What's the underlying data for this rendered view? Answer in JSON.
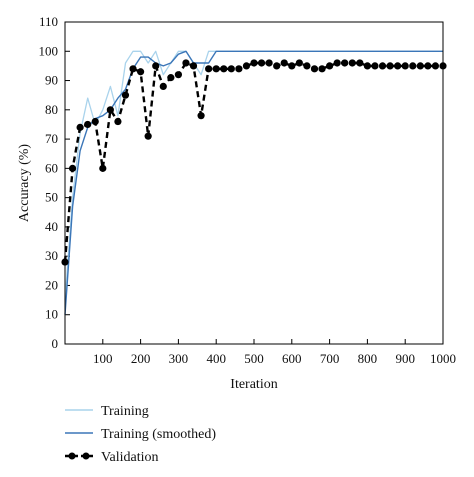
{
  "chart_data": {
    "type": "line",
    "xlabel": "Iteration",
    "ylabel": "Accuracy (%)",
    "xlim": [
      0,
      1000
    ],
    "ylim": [
      0,
      110
    ],
    "xticks": [
      100,
      200,
      300,
      400,
      500,
      600,
      700,
      800,
      900,
      1000
    ],
    "yticks": [
      0,
      10,
      20,
      30,
      40,
      50,
      60,
      70,
      80,
      90,
      100,
      110
    ],
    "grid": false,
    "legend_position": "bottom",
    "series": [
      {
        "name": "Training",
        "color": "#a9d3ec",
        "style": "solid",
        "x": [
          0,
          20,
          40,
          60,
          80,
          100,
          120,
          140,
          160,
          180,
          200,
          220,
          240,
          260,
          280,
          300,
          320,
          340,
          360,
          380,
          400,
          500,
          600,
          700,
          800,
          900,
          1000
        ],
        "y": [
          15,
          50,
          72,
          84,
          75,
          80,
          88,
          78,
          96,
          100,
          100,
          96,
          100,
          92,
          96,
          100,
          100,
          96,
          92,
          100,
          100,
          100,
          100,
          100,
          100,
          100,
          100
        ]
      },
      {
        "name": "Training (smoothed)",
        "color": "#3b76b8",
        "style": "solid",
        "x": [
          0,
          20,
          40,
          60,
          80,
          100,
          120,
          140,
          160,
          180,
          200,
          220,
          240,
          260,
          280,
          300,
          320,
          340,
          360,
          380,
          400,
          500,
          600,
          700,
          800,
          900,
          1000
        ],
        "y": [
          10,
          47,
          66,
          74,
          77,
          78,
          80,
          84,
          87,
          94,
          98,
          98,
          96,
          95,
          96,
          99,
          100,
          96,
          96,
          96,
          100,
          100,
          100,
          100,
          100,
          100,
          100
        ]
      },
      {
        "name": "Validation",
        "color": "#000000",
        "style": "dashed-markers",
        "x": [
          0,
          20,
          40,
          60,
          80,
          100,
          120,
          140,
          160,
          180,
          200,
          220,
          240,
          260,
          280,
          300,
          320,
          340,
          360,
          380,
          400,
          420,
          440,
          460,
          480,
          500,
          520,
          540,
          560,
          580,
          600,
          620,
          640,
          660,
          680,
          700,
          720,
          740,
          760,
          780,
          800,
          820,
          840,
          860,
          880,
          900,
          920,
          940,
          960,
          980,
          1000
        ],
        "y": [
          28,
          60,
          74,
          75,
          76,
          60,
          80,
          76,
          85,
          94,
          93,
          71,
          95,
          88,
          91,
          92,
          96,
          95,
          78,
          94,
          94,
          94,
          94,
          94,
          95,
          96,
          96,
          96,
          95,
          96,
          95,
          96,
          95,
          94,
          94,
          95,
          96,
          96,
          96,
          96,
          95,
          95,
          95,
          95,
          95,
          95,
          95,
          95,
          95,
          95,
          95
        ]
      }
    ]
  }
}
